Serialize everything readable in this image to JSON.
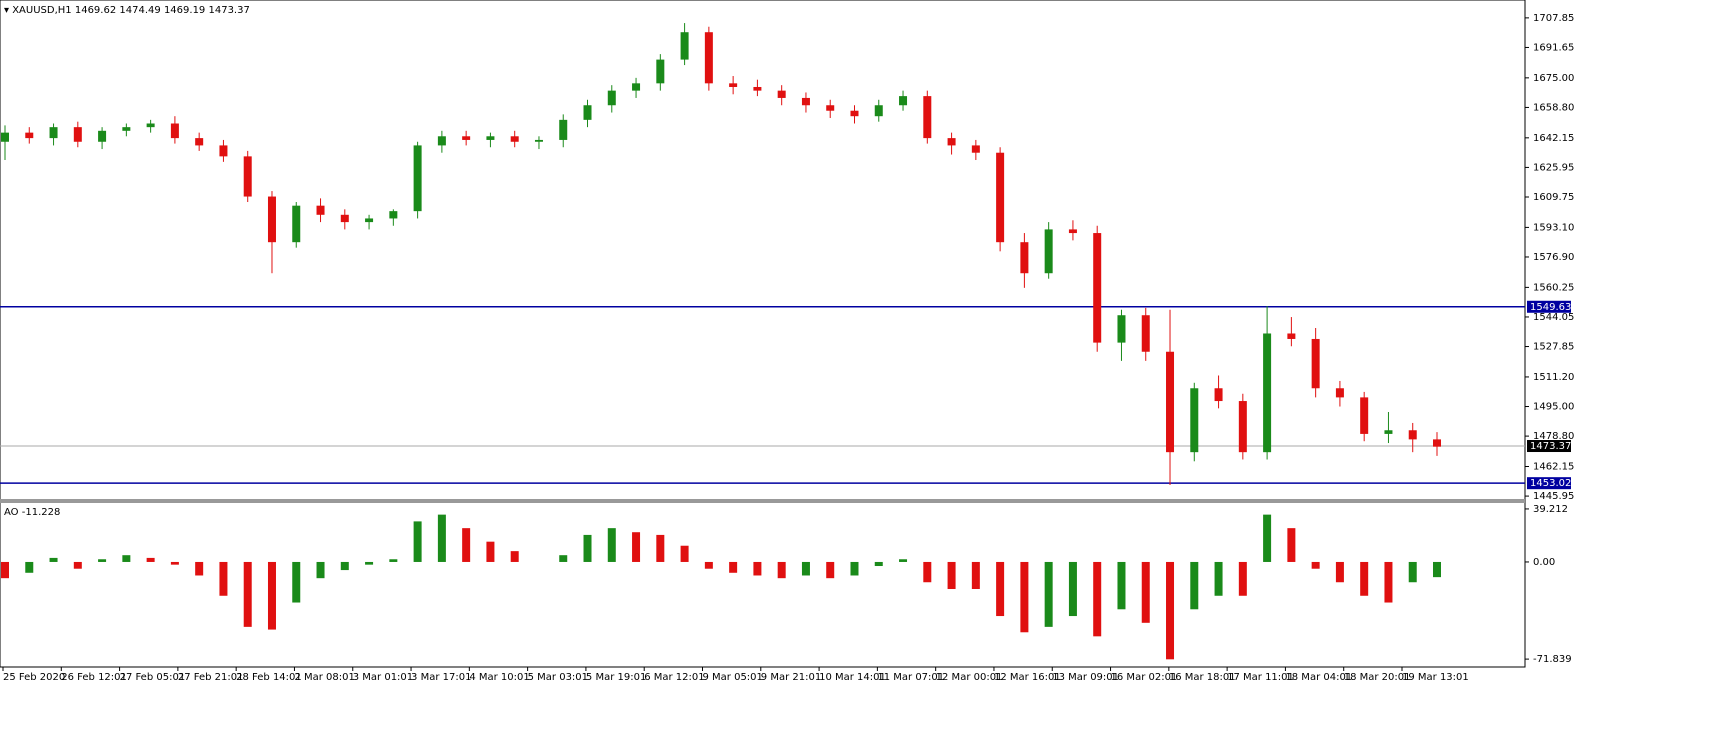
{
  "chart_data": {
    "type": "candlestick",
    "symbol": "XAUUSD,H1",
    "ohlc": [
      1469.62,
      1474.49,
      1469.19,
      1473.37
    ],
    "up_color": "#1a8a1a",
    "down_color": "#e01010",
    "open": [
      1640,
      1645,
      1642,
      1648,
      1640,
      1646,
      1648,
      1650,
      1642,
      1638,
      1632,
      1610,
      1585,
      1605,
      1600,
      1596,
      1598,
      1602,
      1638,
      1643,
      1641,
      1643,
      1640,
      1641,
      1652,
      1660,
      1668,
      1672,
      1685,
      1700,
      1672,
      1670,
      1668,
      1664,
      1660,
      1657,
      1654,
      1660,
      1665,
      1642,
      1638,
      1634,
      1585,
      1568,
      1592,
      1590,
      1530,
      1545,
      1525,
      1470,
      1505,
      1498,
      1470,
      1535,
      1532,
      1505,
      1500,
      1480,
      1482,
      1477
    ],
    "high": [
      1649,
      1648,
      1650,
      1651,
      1648,
      1650,
      1652,
      1654,
      1645,
      1641,
      1635,
      1613,
      1607,
      1609,
      1603,
      1600,
      1603,
      1640,
      1646,
      1646,
      1645,
      1646,
      1643,
      1655,
      1663,
      1671,
      1675,
      1688,
      1705,
      1703,
      1676,
      1674,
      1671,
      1667,
      1663,
      1660,
      1663,
      1668,
      1668,
      1645,
      1641,
      1637,
      1590,
      1596,
      1597,
      1594,
      1548,
      1549,
      1548,
      1508,
      1512,
      1502,
      1550,
      1544,
      1538,
      1509,
      1503,
      1492,
      1486,
      1481
    ],
    "low": [
      1630,
      1639,
      1638,
      1637,
      1636,
      1643,
      1645,
      1639,
      1635,
      1629,
      1607,
      1568,
      1582,
      1596,
      1592,
      1592,
      1594,
      1598,
      1634,
      1638,
      1637,
      1637,
      1636,
      1637,
      1648,
      1656,
      1664,
      1668,
      1682,
      1668,
      1666,
      1665,
      1660,
      1656,
      1653,
      1650,
      1651,
      1657,
      1639,
      1633,
      1630,
      1580,
      1560,
      1565,
      1586,
      1525,
      1520,
      1520,
      1452,
      1465,
      1494,
      1466,
      1466,
      1528,
      1500,
      1495,
      1476,
      1475,
      1470,
      1468
    ],
    "close": [
      1645,
      1642,
      1648,
      1640,
      1646,
      1648,
      1650,
      1642,
      1638,
      1632,
      1610,
      1585,
      1605,
      1600,
      1596,
      1598,
      1602,
      1638,
      1643,
      1641,
      1643,
      1640,
      1641,
      1652,
      1660,
      1668,
      1672,
      1685,
      1700,
      1672,
      1670,
      1668,
      1664,
      1660,
      1657,
      1654,
      1660,
      1665,
      1642,
      1638,
      1634,
      1585,
      1568,
      1592,
      1590,
      1530,
      1545,
      1525,
      1470,
      1505,
      1498,
      1470,
      1535,
      1532,
      1505,
      1500,
      1480,
      1482,
      1477,
      1473
    ],
    "ylim": [
      1444.9,
      1714.9
    ],
    "yticks": [
      1707.85,
      1691.65,
      {
        "value": 1675,
        "label": "1675.00"
      },
      {
        "value": 1658.8,
        "label": "1658.80"
      },
      1642.15,
      1625.95,
      1609.75,
      {
        "value": 1593.1,
        "label": "1593.10"
      },
      {
        "value": 1576.9,
        "label": "1576.90"
      },
      1560.25,
      1544.05,
      1527.85,
      {
        "value": 1511.2,
        "label": "1511.20"
      },
      {
        "value": 1495,
        "label": "1495.00"
      },
      {
        "value": 1478.8,
        "label": "1478.80"
      },
      1462.15,
      1445.95
    ],
    "levels": [
      {
        "value": 1549.63,
        "color": "#0000a0"
      },
      {
        "value": 1453.02,
        "color": "#0000a0"
      }
    ],
    "current_price": 1473.37,
    "x_labels": [
      "25 Feb 2020",
      "26 Feb 12:01",
      "27 Feb 05:01",
      "27 Feb 21:01",
      "28 Feb 14:01",
      "2 Mar 08:01",
      "3 Mar 01:01",
      "3 Mar 17:01",
      "4 Mar 10:01",
      "5 Mar 03:01",
      "5 Mar 19:01",
      "6 Mar 12:01",
      "9 Mar 05:01",
      "9 Mar 21:01",
      "10 Mar 14:01",
      "11 Mar 07:01",
      "12 Mar 00:01",
      "12 Mar 16:01",
      "13 Mar 09:01",
      "16 Mar 02:01",
      "16 Mar 18:01",
      "17 Mar 11:01",
      "18 Mar 04:01",
      "18 Mar 20:01",
      "19 Mar 13:01"
    ],
    "ao": {
      "name": "AO",
      "current": -11.228,
      "values": [
        -12,
        -8,
        3,
        -5,
        2,
        5,
        3,
        -2,
        -10,
        -25,
        -48,
        -50,
        -30,
        -12,
        -6,
        -2,
        2,
        30,
        35,
        25,
        15,
        8,
        0,
        5,
        20,
        25,
        22,
        20,
        12,
        -5,
        -8,
        -10,
        -12,
        -10,
        -12,
        -10,
        -3,
        2,
        -15,
        -20,
        -20,
        -40,
        -52,
        -48,
        -40,
        -55,
        -35,
        -45,
        -72,
        -35,
        -25,
        -25,
        35,
        25,
        -5,
        -15,
        -25,
        -30,
        -15,
        -11.228
      ],
      "ylim": [
        -76.2,
        43.6
      ],
      "yticks": [
        39.212,
        {
          "value": 0,
          "label": "0.00"
        },
        -71.839
      ]
    }
  }
}
